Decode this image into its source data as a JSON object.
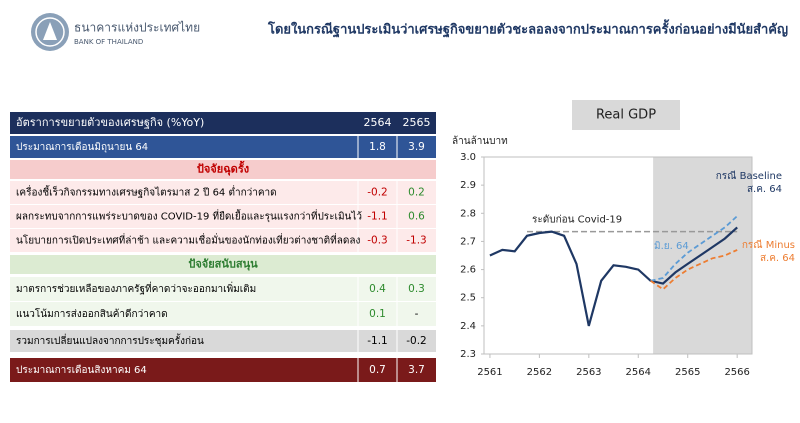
{
  "header": {
    "org_name": "ธนาคารแห่งประเทศไทย",
    "org_name_en": "BANK OF THAILAND",
    "title": "โดยในกรณีฐานประเมินว่าเศรษฐกิจขยายตัวชะลอลงจากประมาณการครั้งก่อนอย่างมีนัยสำคัญ"
  },
  "table": {
    "header": [
      "อัตราการขยายตัวของเศรษฐกิจ (%YoY)",
      "2564",
      "2565"
    ],
    "rows": [
      [
        "ประมาณการเดือนมิถุนายน 64",
        1.8,
        3.9
      ],
      [
        "ปัจจัยฉุดรั้ง"
      ],
      [
        "เครื่องชี้เร็วกิจกรรมทางเศรษฐกิจไตรมาส 2 ปี 64 ต่ำกว่าคาด",
        -0.2,
        0.2
      ],
      [
        "ผลกระทบจากการแพร่ระบาดของ COVID-19 ที่ยืดเยื้อและรุนแรงกว่าที่ประเมินไว้",
        -1.1,
        0.6
      ],
      [
        "นโยบายการเปิดประเทศที่ล่าช้า และความเชื่อมั่นของนักท่องเที่ยวต่างชาติที่ลดลง",
        -0.3,
        -1.3
      ],
      [
        "ปัจจัยสนับสนุน"
      ],
      [
        "มาตรการช่วยเหลือของภาครัฐที่คาดว่าจะออกมาเพิ่มเติม",
        0.4,
        0.3
      ],
      [
        "แนวโน้มการส่งออกสินค้าดีกว่าคาด",
        0.1,
        "-"
      ],
      [
        "รวมการเปลี่ยนแปลงจากการประชุมครั้งก่อน",
        -1.1,
        -0.2
      ],
      [
        "ประมาณการเดือนสิงหาคม 64",
        0.7,
        3.7
      ]
    ]
  },
  "chart_data": {
    "type": "line",
    "title": "Real GDP",
    "y_label": "ล้านล้านบาท",
    "x": [
      2561,
      2561.25,
      2561.5,
      2561.75,
      2562,
      2562.25,
      2562.5,
      2562.75,
      2563,
      2563.25,
      2563.5,
      2563.75,
      2564,
      2564.25,
      2564.5,
      2564.75,
      2565,
      2565.25,
      2565.5,
      2565.75,
      2566
    ],
    "series": [
      {
        "name": "กรณี Baseline ส.ค. 64",
        "color": "#1f3864",
        "dashed": false,
        "values": [
          2.65,
          2.67,
          2.665,
          2.72,
          2.73,
          2.735,
          2.72,
          2.62,
          2.4,
          2.56,
          2.615,
          2.61,
          2.6,
          2.56,
          2.55,
          2.59,
          2.62,
          2.65,
          2.68,
          2.71,
          2.75
        ]
      },
      {
        "name": "มิ.ย. 64",
        "color": "#5b9bd5",
        "dashed": true,
        "values": [
          null,
          null,
          null,
          null,
          null,
          null,
          null,
          null,
          null,
          null,
          null,
          null,
          null,
          2.56,
          2.57,
          2.62,
          2.66,
          2.69,
          2.72,
          2.75,
          2.79
        ]
      },
      {
        "name": "กรณี Minus ส.ค. 64",
        "color": "#ed7d31",
        "dashed": true,
        "values": [
          null,
          null,
          null,
          null,
          null,
          null,
          null,
          null,
          null,
          null,
          null,
          null,
          null,
          2.56,
          2.53,
          2.57,
          2.6,
          2.62,
          2.64,
          2.65,
          2.67
        ]
      }
    ],
    "reference_line": {
      "label": "ระดับก่อน Covid-19",
      "value": 2.735,
      "color": "#999999"
    },
    "shaded_region": [
      2564.3,
      2566.3
    ],
    "xlim": [
      2560.88,
      2566.3
    ],
    "xticks": [
      2561,
      2562,
      2563,
      2564,
      2565,
      2566
    ],
    "ylim": [
      2.3,
      3.0
    ],
    "yticks": [
      2.3,
      2.4,
      2.5,
      2.6,
      2.7,
      2.8,
      2.9,
      {
        "value": 3.0,
        "label": "3.0"
      }
    ]
  }
}
